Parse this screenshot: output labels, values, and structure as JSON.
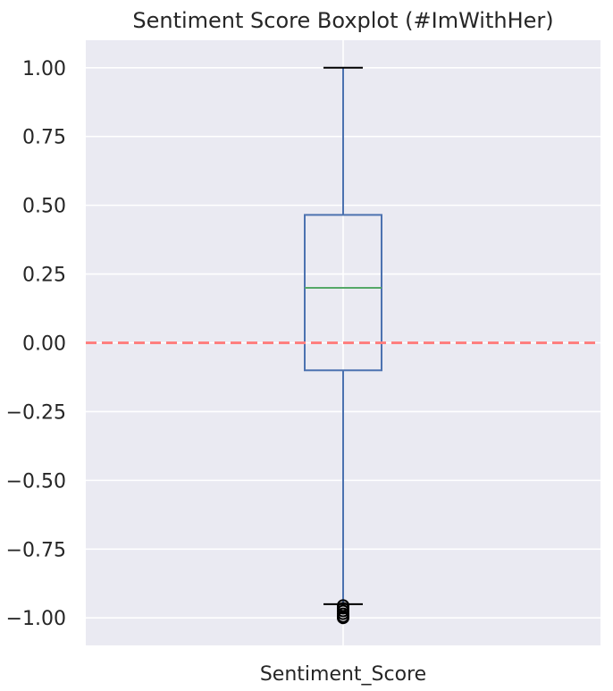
{
  "chart_data": {
    "type": "boxplot",
    "title": "Sentiment Score Boxplot (#ImWithHer)",
    "categories": [
      "Sentiment_Score"
    ],
    "ylim": [
      -1.1,
      1.1
    ],
    "yticks": [
      1.0,
      0.75,
      0.5,
      0.25,
      0.0,
      -0.25,
      -0.5,
      -0.75,
      -1.0
    ],
    "ytick_labels": [
      "1.00",
      "0.75",
      "0.50",
      "0.25",
      "0.00",
      "−0.25",
      "−0.50",
      "−0.75",
      "−1.00"
    ],
    "grid": true,
    "box": {
      "whisker_low": -0.95,
      "q1": -0.1,
      "median": 0.2,
      "q3": 0.465,
      "whisker_high": 1.0
    },
    "outliers": [
      -0.955,
      -0.965,
      -0.975,
      -0.985,
      -0.995,
      -1.0
    ],
    "reference_line": {
      "y": 0.0,
      "style": "dashed"
    },
    "colors": {
      "background": "#eaeaf2",
      "grid": "#ffffff",
      "box": "#4c72b0",
      "median": "#55a868",
      "whisker_cap": "#000000",
      "outlier": "#000000",
      "reference_line": "#ff7f7f"
    }
  }
}
